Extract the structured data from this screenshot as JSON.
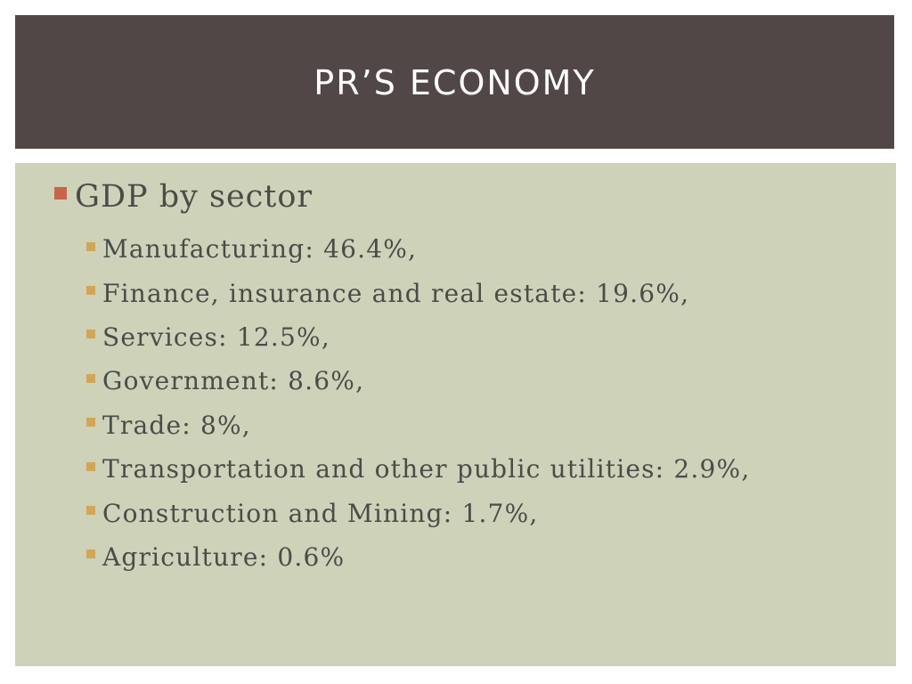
{
  "slide": {
    "title": "PR’S ECONOMY",
    "main_bullet": "GDP by sector",
    "sub_bullets": [
      "Manufacturing: 46.4%,",
      "Finance, insurance and real estate: 19.6%,",
      "Services: 12.5%,",
      "Government: 8.6%,",
      "Trade: 8%,",
      "Transportation and other public utilities: 2.9%,",
      "Construction and Mining: 1.7%,",
      "Agriculture: 0.6%"
    ]
  },
  "colors": {
    "title_bar": "#524747",
    "content_panel": "#cdd2b9",
    "primary_marker": "#c8644a",
    "secondary_marker": "#d3a654",
    "text": "#4d4b48"
  }
}
